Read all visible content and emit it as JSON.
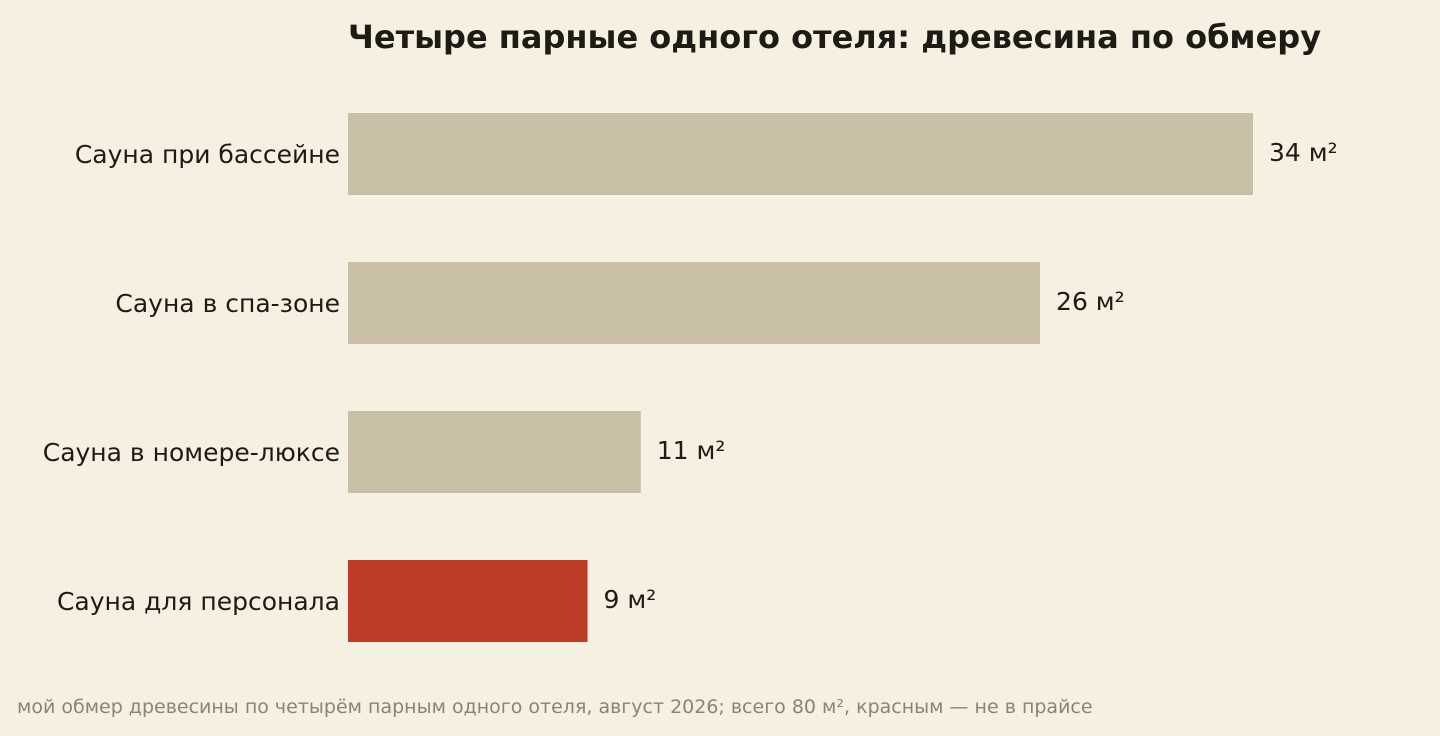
{
  "title": "Четыре парные одного отеля: древесина по обмеру",
  "footnote": "мой обмер древесины по четырём парным одного отеля, август 2026; всего 80 м², красным — не в прайсе",
  "chart_data": {
    "type": "bar",
    "orientation": "horizontal",
    "title": "Четыре парные одного отеля: древесина по обмеру",
    "categories": [
      "Сауна при бассейне",
      "Сауна в спа-зоне",
      "Сауна в номере-люксе",
      "Сауна для персонала"
    ],
    "values": [
      34,
      26,
      11,
      9
    ],
    "value_labels": [
      "34 м²",
      "26 м²",
      "11 м²",
      "9 м²"
    ],
    "unit": "м²",
    "highlighted": [
      false,
      false,
      false,
      true
    ],
    "colors": {
      "default": "#c9bfa7",
      "highlight": "#bb3d28",
      "text": "#1e1b14",
      "background": "#f6f0e3"
    },
    "xlim": [
      0,
      34
    ],
    "grid": false,
    "axes_visible": false
  }
}
